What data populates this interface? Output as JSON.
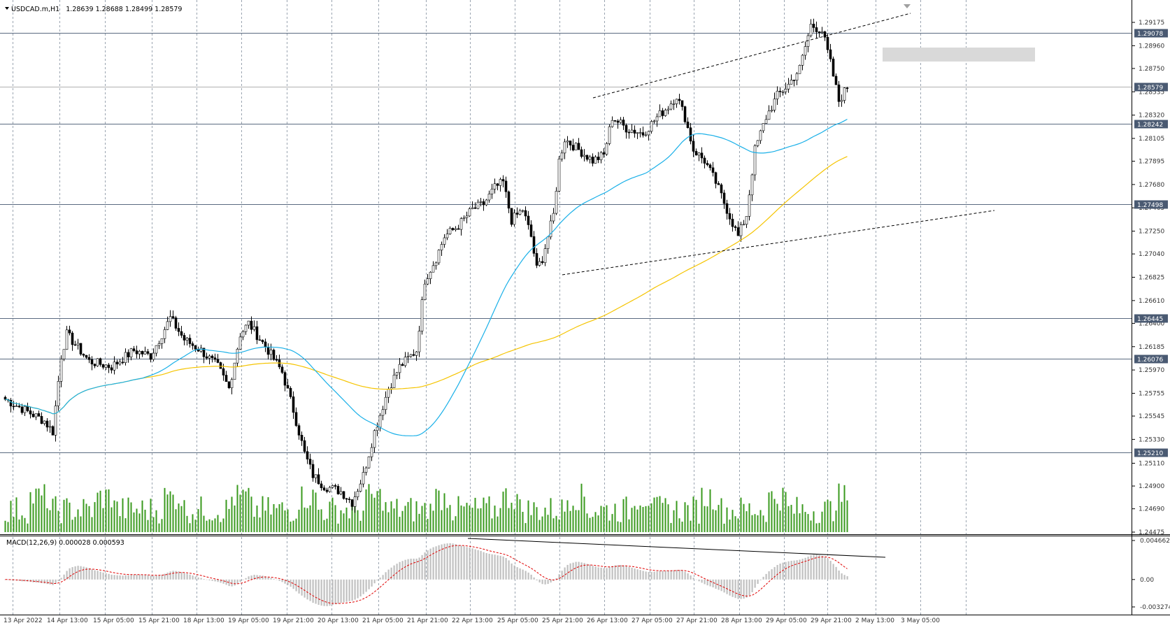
{
  "chart": {
    "symbol": "USDCAD.m,H1",
    "ohlc": "1.28639 1.28688 1.28499 1.28579",
    "indicator_label": "MACD(12,26,9) 0.000028 0.000593"
  },
  "price_axis": {
    "ticks": [
      "1.29175",
      "1.28960",
      "1.28750",
      "1.28535",
      "1.28320",
      "1.28105",
      "1.27895",
      "1.27680",
      "1.27465",
      "1.27250",
      "1.27040",
      "1.26825",
      "1.26610",
      "1.26400",
      "1.26185",
      "1.25970",
      "1.25755",
      "1.25545",
      "1.25330",
      "1.25110",
      "1.24900",
      "1.24690",
      "1.24475"
    ],
    "range": [
      1.24475,
      1.29175
    ],
    "level_tags": [
      "1.29078",
      "1.28579",
      "1.28242",
      "1.27498",
      "1.26445",
      "1.26076",
      "1.25210"
    ]
  },
  "macd_axis": {
    "ticks": [
      "0.004662",
      "0.00",
      "-0.003274"
    ],
    "range": [
      -0.003274,
      0.004662
    ]
  },
  "time_axis": {
    "labels": [
      "13 Apr 2022",
      "14 Apr 13:00",
      "15 Apr 05:00",
      "15 Apr 21:00",
      "18 Apr 13:00",
      "19 Apr 05:00",
      "19 Apr 21:00",
      "20 Apr 13:00",
      "21 Apr 05:00",
      "21 Apr 21:00",
      "22 Apr 13:00",
      "25 Apr 05:00",
      "25 Apr 21:00",
      "26 Apr 13:00",
      "27 Apr 05:00",
      "27 Apr 21:00",
      "28 Apr 13:00",
      "29 Apr 05:00",
      "29 Apr 21:00",
      "2 May 13:00",
      "3 May 05:00"
    ]
  },
  "colors": {
    "candle": "#000000",
    "ma_fast": "#1ab0e8",
    "ma_slow": "#f5c400",
    "volume": "#3a9a1e",
    "macd_hist": "#c0c0c0",
    "macd_signal": "#e00000",
    "grid": "#9aa4b0",
    "level_line": "#5a6a80",
    "tag_bg": "#4a5a72"
  },
  "chart_data": {
    "type": "candlestick",
    "timeframe": "H1",
    "key_prices": {
      "low_area": 1.2475,
      "apr14_high": 1.2645,
      "apr20_low": 1.2475,
      "apr26_high": 1.285,
      "apr29_low": 1.272,
      "may2_high": 1.2915,
      "last_close": 1.28579
    },
    "horizontal_levels": [
      1.29078,
      1.28242,
      1.27498,
      1.26445,
      1.26076,
      1.2521
    ],
    "current_price": 1.28579,
    "resistance_zone": [
      1.2885,
      1.2895
    ],
    "trendlines": [
      {
        "style": "dashed",
        "from": {
          "x": "26 Apr 05:00",
          "y": 1.283
        },
        "to": {
          "x": "3 May 09:00",
          "y": 1.2925
        }
      },
      {
        "style": "dashed",
        "from": {
          "x": "25 Apr 13:00",
          "y": 1.2685
        },
        "to": {
          "x": "4 May 01:00",
          "y": 1.2745
        }
      }
    ],
    "moving_averages": [
      {
        "color": "#1ab0e8",
        "last_value": 1.2835
      },
      {
        "color": "#f5c400",
        "last_value": 1.277
      }
    ],
    "macd": {
      "params": "12,26,9",
      "main": 2.8e-05,
      "signal": 0.000593,
      "ylim": [
        -0.003274,
        0.004662
      ]
    },
    "macd_divergence_line": {
      "from": {
        "x": "22 Apr 13:00",
        "y": 0.0043
      },
      "to": {
        "x": "2 May 13:00",
        "y": 0.0024
      }
    }
  }
}
